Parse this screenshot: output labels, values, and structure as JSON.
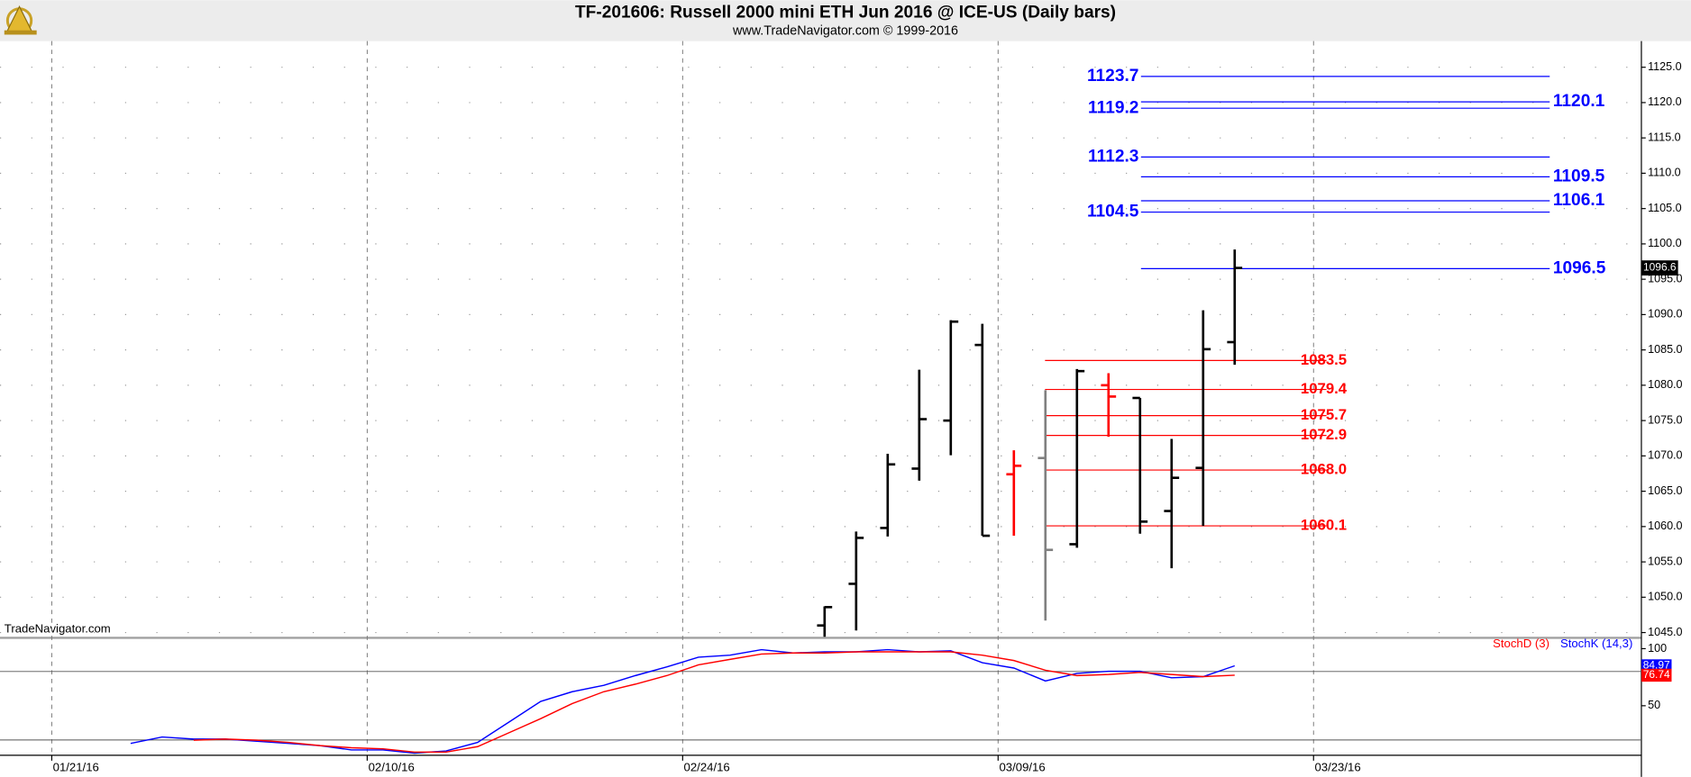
{
  "chart_data": [
    {
      "type": "ohlc",
      "title": "TF-201606:  Russell 2000 mini ETH Jun 2016 @ ICE-US  (Daily bars)",
      "subtitle": "www.TradeNavigator.com © 1999-2016",
      "watermark": "TradeNavigator.com",
      "x": [
        24.5,
        25.5,
        26.5,
        27.5,
        28.5,
        29.5,
        30.5,
        31.5,
        32.5,
        33.5,
        34.5,
        35.5,
        36.5,
        37.5
      ],
      "open": [
        1046.0,
        1051.9,
        1059.8,
        1068.2,
        1075.0,
        1085.7,
        1067.4,
        1069.7,
        1057.5,
        1080.0,
        1078.2,
        1062.2,
        1068.3,
        1086.1
      ],
      "high": [
        1048.7,
        1059.3,
        1070.3,
        1082.2,
        1089.2,
        1088.7,
        1070.8,
        1079.3,
        1082.3,
        1081.7,
        1078.2,
        1072.4,
        1090.6,
        1099.2
      ],
      "low": [
        1043.5,
        1045.3,
        1058.6,
        1066.5,
        1070.1,
        1058.7,
        1058.7,
        1046.7,
        1057.0,
        1072.7,
        1059.0,
        1054.1,
        1060.1,
        1082.9
      ],
      "close": [
        1048.6,
        1058.4,
        1068.8,
        1075.2,
        1089.0,
        1058.7,
        1068.6,
        1056.7,
        1082.0,
        1078.4,
        1060.7,
        1066.9,
        1085.1,
        1096.6
      ],
      "colors": [
        "#000000",
        "#000000",
        "#000000",
        "#000000",
        "#000000",
        "#000000",
        "#ff0000",
        "#808080",
        "#000000",
        "#ff0000",
        "#000000",
        "#000000",
        "#000000",
        "#000000"
      ],
      "last_value": 1096.6,
      "xlim": [
        0,
        50.3
      ],
      "ylim": [
        1044.4,
        1128.7
      ],
      "yticks": [
        {
          "value": 1045,
          "label": "1045.0"
        },
        {
          "value": 1050,
          "label": "1050.0"
        },
        {
          "value": 1055,
          "label": "1055.0"
        },
        {
          "value": 1060,
          "label": "1060.0"
        },
        {
          "value": 1065,
          "label": "1065.0"
        },
        {
          "value": 1070,
          "label": "1070.0"
        },
        {
          "value": 1075,
          "label": "1075.0"
        },
        {
          "value": 1080,
          "label": "1080.0"
        },
        {
          "value": 1085,
          "label": "1085.0"
        },
        {
          "value": 1090,
          "label": "1090.0"
        },
        {
          "value": 1095,
          "label": "1095.0"
        },
        {
          "value": 1100,
          "label": "1100.0"
        },
        {
          "value": 1105,
          "label": "1105.0"
        },
        {
          "value": 1110,
          "label": "1110.0"
        },
        {
          "value": 1115,
          "label": "1115.0"
        },
        {
          "value": 1120,
          "label": "1120.0"
        },
        {
          "value": 1125,
          "label": "1125.0"
        }
      ],
      "grid": true,
      "resistance_levels": {
        "color": "#0000ff",
        "values": [
          1123.7,
          1120.1,
          1119.2,
          1112.3,
          1109.5,
          1106.1,
          1104.5,
          1096.5
        ],
        "value_labels": [
          "1123.7",
          "1120.1",
          "1119.2",
          "1112.3",
          "1109.5",
          "1106.1",
          "1104.5",
          "1096.5"
        ],
        "label_side": [
          "left",
          "right",
          "left",
          "left",
          "right",
          "right",
          "left",
          "right"
        ]
      },
      "support_levels": {
        "color": "#ff0000",
        "values": [
          1083.5,
          1079.4,
          1075.7,
          1072.9,
          1068.0,
          1060.1
        ],
        "value_labels": [
          "1083.5",
          "1079.4",
          "1075.7",
          "1072.9",
          "1068.0",
          "1060.1"
        ]
      }
    },
    {
      "type": "line",
      "x": [
        2.5,
        3.5,
        4.5,
        5.5,
        6.5,
        7.5,
        8.5,
        9.5,
        10.5,
        11.5,
        12.5,
        13.5,
        14.5,
        15.5,
        16.5,
        17.5,
        18.5,
        19.5,
        20.5,
        21.5,
        22.5,
        23.5,
        24.5,
        25.5,
        26.5,
        27.5,
        28.5,
        29.5,
        30.5,
        31.5,
        32.5,
        33.5,
        34.5,
        35.5,
        36.5,
        37.5
      ],
      "series": [
        {
          "name": "StochK (14,3)",
          "color": "#0000ff",
          "values": [
            17.0,
            22.6,
            20.8,
            20.8,
            18.9,
            17.0,
            15.1,
            11.3,
            11.3,
            8.5,
            10.4,
            17.9,
            35.8,
            53.8,
            62.3,
            67.9,
            76.4,
            84.0,
            92.5,
            94.3,
            99.1,
            96.2,
            97.2,
            97.2,
            99.1,
            97.2,
            98.1,
            87.7,
            83.0,
            71.7,
            78.3,
            80.2,
            80.2,
            74.5,
            75.5,
            84.97
          ]
        },
        {
          "name": "StochD (3)",
          "color": "#ff0000",
          "values": [
            null,
            null,
            19.8,
            20.8,
            19.8,
            17.9,
            15.1,
            13.2,
            12.3,
            9.4,
            9.4,
            14.2,
            26.4,
            38.7,
            51.9,
            62.3,
            68.9,
            76.4,
            85.8,
            90.6,
            95.3,
            96.2,
            96.2,
            97.2,
            97.2,
            97.2,
            97.2,
            94.3,
            89.6,
            81.1,
            76.4,
            77.4,
            79.2,
            77.4,
            75.5,
            76.74
          ]
        }
      ],
      "xlim": [
        0,
        50.3
      ],
      "xticks": [
        {
          "value": 0,
          "label": "01/21/16"
        },
        {
          "value": 10,
          "label": "02/10/16"
        },
        {
          "value": 20,
          "label": "02/24/16"
        },
        {
          "value": 30,
          "label": "03/09/16"
        },
        {
          "value": 40,
          "label": "03/23/16"
        }
      ],
      "ylim": [
        6.6,
        108.5
      ],
      "yticks": [
        50,
        100
      ],
      "reference_lines": [
        20,
        80
      ],
      "legend": "top-right"
    }
  ]
}
